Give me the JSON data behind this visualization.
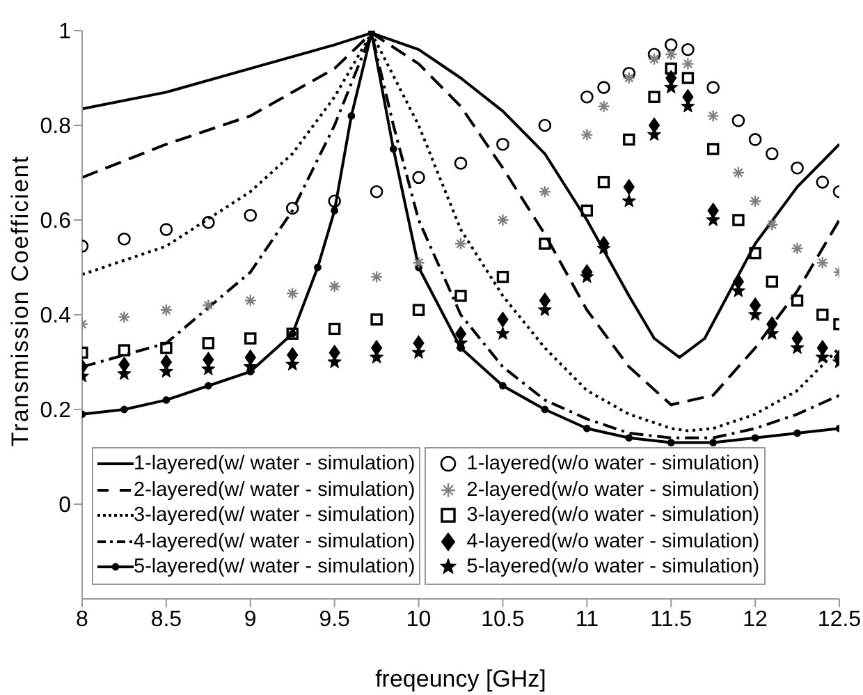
{
  "chart_data": {
    "type": "line",
    "xlabel": "freqeuncy [GHz]",
    "ylabel": "Transmission Coefficient",
    "xlim": [
      8,
      12.5
    ],
    "xticks": [
      8,
      8.5,
      9,
      9.5,
      10,
      10.5,
      11,
      11.5,
      12,
      12.5
    ],
    "ylim": [
      -0.2,
      1
    ],
    "yticks": [
      0,
      0.2,
      0.4,
      0.6,
      0.8,
      1
    ],
    "grid": false,
    "legend": "bottom",
    "series": [
      {
        "name": "1-layered(w/ water - simulation)",
        "color": "#000000",
        "line_style": "solid",
        "marker": "none",
        "x": [
          8,
          8.5,
          9,
          9.5,
          9.72,
          10,
          10.25,
          10.5,
          10.75,
          11,
          11.25,
          11.4,
          11.55,
          11.7,
          11.85,
          12,
          12.25,
          12.5
        ],
        "values": [
          0.835,
          0.87,
          0.92,
          0.97,
          0.995,
          0.96,
          0.9,
          0.83,
          0.74,
          0.6,
          0.44,
          0.35,
          0.31,
          0.35,
          0.45,
          0.55,
          0.67,
          0.76
        ]
      },
      {
        "name": "2-layered(w/ water - simulation)",
        "color": "#000000",
        "line_style": "dashed",
        "marker": "none",
        "x": [
          8,
          8.5,
          9,
          9.5,
          9.72,
          10,
          10.25,
          10.5,
          10.75,
          11,
          11.25,
          11.5,
          11.75,
          12,
          12.25,
          12.5
        ],
        "values": [
          0.69,
          0.76,
          0.82,
          0.92,
          0.995,
          0.93,
          0.84,
          0.71,
          0.57,
          0.41,
          0.29,
          0.21,
          0.23,
          0.33,
          0.45,
          0.6
        ]
      },
      {
        "name": "3-layered(w/ water - simulation)",
        "color": "#000000",
        "line_style": "dotted",
        "marker": "none",
        "x": [
          8,
          8.5,
          9,
          9.25,
          9.5,
          9.72,
          10,
          10.25,
          10.5,
          10.75,
          11,
          11.25,
          11.5,
          11.6,
          11.75,
          12,
          12.25,
          12.5
        ],
        "values": [
          0.485,
          0.545,
          0.66,
          0.74,
          0.86,
          0.995,
          0.8,
          0.58,
          0.44,
          0.33,
          0.24,
          0.19,
          0.16,
          0.155,
          0.16,
          0.19,
          0.24,
          0.33
        ]
      },
      {
        "name": "4-layered(w/ water - simulation)",
        "color": "#000000",
        "line_style": "dashdot",
        "marker": "none",
        "x": [
          8,
          8.5,
          9,
          9.25,
          9.5,
          9.72,
          9.85,
          10,
          10.25,
          10.5,
          10.75,
          11,
          11.25,
          11.5,
          11.75,
          12,
          12.25,
          12.5
        ],
        "values": [
          0.29,
          0.34,
          0.49,
          0.62,
          0.8,
          0.995,
          0.8,
          0.6,
          0.4,
          0.29,
          0.22,
          0.18,
          0.15,
          0.14,
          0.14,
          0.16,
          0.19,
          0.23
        ]
      },
      {
        "name": "5-layered(w/ water - simulation)",
        "color": "#000000",
        "line_style": "solid",
        "marker": "circle",
        "x": [
          8,
          8.25,
          8.5,
          8.75,
          9,
          9.25,
          9.4,
          9.5,
          9.6,
          9.72,
          9.85,
          10,
          10.25,
          10.5,
          10.75,
          11,
          11.25,
          11.5,
          11.75,
          12,
          12.25,
          12.5
        ],
        "values": [
          0.19,
          0.2,
          0.22,
          0.25,
          0.28,
          0.36,
          0.5,
          0.62,
          0.82,
          0.995,
          0.75,
          0.5,
          0.33,
          0.25,
          0.2,
          0.16,
          0.14,
          0.13,
          0.13,
          0.14,
          0.15,
          0.16
        ]
      },
      {
        "name": "1-layered(w/o water - simulation)",
        "color": "#000000",
        "type": "scatter",
        "marker": "circle",
        "x": [
          8,
          8.25,
          8.5,
          8.75,
          9,
          9.25,
          9.5,
          9.75,
          10,
          10.25,
          10.5,
          10.75,
          11,
          11.1,
          11.25,
          11.4,
          11.5,
          11.6,
          11.75,
          11.9,
          12,
          12.1,
          12.25,
          12.4,
          12.5
        ],
        "values": [
          0.545,
          0.56,
          0.58,
          0.595,
          0.61,
          0.625,
          0.64,
          0.66,
          0.69,
          0.72,
          0.76,
          0.8,
          0.86,
          0.88,
          0.91,
          0.95,
          0.97,
          0.96,
          0.88,
          0.81,
          0.77,
          0.74,
          0.71,
          0.68,
          0.66
        ]
      },
      {
        "name": "2-layered(w/o water - simulation)",
        "color": "#808080",
        "type": "scatter",
        "marker": "cross",
        "x": [
          8,
          8.25,
          8.5,
          8.75,
          9,
          9.25,
          9.5,
          9.75,
          10,
          10.25,
          10.5,
          10.75,
          11,
          11.1,
          11.25,
          11.4,
          11.5,
          11.6,
          11.75,
          11.9,
          12,
          12.1,
          12.25,
          12.4,
          12.5
        ],
        "values": [
          0.38,
          0.395,
          0.41,
          0.42,
          0.43,
          0.445,
          0.46,
          0.48,
          0.51,
          0.55,
          0.6,
          0.66,
          0.78,
          0.84,
          0.9,
          0.94,
          0.95,
          0.93,
          0.82,
          0.7,
          0.64,
          0.59,
          0.54,
          0.51,
          0.49
        ]
      },
      {
        "name": "3-layered(w/o water - simulation)",
        "color": "#000000",
        "type": "scatter",
        "marker": "square",
        "x": [
          8,
          8.25,
          8.5,
          8.75,
          9,
          9.25,
          9.5,
          9.75,
          10,
          10.25,
          10.5,
          10.75,
          11,
          11.1,
          11.25,
          11.4,
          11.5,
          11.6,
          11.75,
          11.9,
          12,
          12.1,
          12.25,
          12.4,
          12.5
        ],
        "values": [
          0.32,
          0.325,
          0.33,
          0.34,
          0.35,
          0.36,
          0.37,
          0.39,
          0.41,
          0.44,
          0.48,
          0.55,
          0.62,
          0.68,
          0.77,
          0.86,
          0.92,
          0.9,
          0.75,
          0.6,
          0.53,
          0.47,
          0.43,
          0.4,
          0.38
        ]
      },
      {
        "name": "4-layered(w/o water - simulation)",
        "color": "#000000",
        "type": "scatter",
        "marker": "diamond",
        "x": [
          8,
          8.25,
          8.5,
          8.75,
          9,
          9.25,
          9.5,
          9.75,
          10,
          10.25,
          10.5,
          10.75,
          11,
          11.1,
          11.25,
          11.4,
          11.5,
          11.6,
          11.75,
          11.9,
          12,
          12.1,
          12.25,
          12.4,
          12.5
        ],
        "values": [
          0.29,
          0.295,
          0.3,
          0.305,
          0.31,
          0.315,
          0.32,
          0.33,
          0.34,
          0.36,
          0.39,
          0.43,
          0.49,
          0.55,
          0.67,
          0.8,
          0.9,
          0.86,
          0.62,
          0.47,
          0.42,
          0.38,
          0.35,
          0.33,
          0.31
        ]
      },
      {
        "name": "5-layered(w/o water - simulation)",
        "color": "#000000",
        "type": "scatter",
        "marker": "star",
        "x": [
          8,
          8.25,
          8.5,
          8.75,
          9,
          9.25,
          9.5,
          9.75,
          10,
          10.25,
          10.5,
          10.75,
          11,
          11.1,
          11.25,
          11.4,
          11.5,
          11.6,
          11.75,
          11.9,
          12,
          12.1,
          12.25,
          12.4,
          12.5
        ],
        "values": [
          0.27,
          0.275,
          0.28,
          0.285,
          0.29,
          0.295,
          0.3,
          0.31,
          0.32,
          0.34,
          0.36,
          0.41,
          0.48,
          0.54,
          0.64,
          0.78,
          0.88,
          0.84,
          0.6,
          0.45,
          0.4,
          0.36,
          0.33,
          0.31,
          0.3
        ]
      }
    ]
  }
}
